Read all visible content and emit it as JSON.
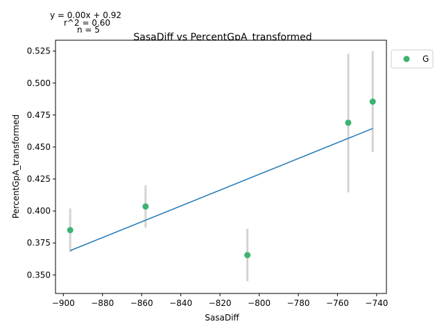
{
  "chart_data": {
    "type": "scatter",
    "title": "SasaDiff vs PercentGpA_transformed",
    "xlabel": "SasaDiff",
    "ylabel": "PercentGpA_transformed",
    "xlim": [
      -904,
      -735
    ],
    "ylim": [
      0.3355,
      0.5335
    ],
    "xticks": [
      -900,
      -880,
      -860,
      -840,
      -820,
      -800,
      -780,
      -760,
      -740
    ],
    "yticks": [
      0.35,
      0.375,
      0.4,
      0.425,
      0.45,
      0.475,
      0.5,
      0.525
    ],
    "xtick_labels": [
      "−900",
      "−880",
      "−860",
      "−840",
      "−820",
      "−800",
      "−780",
      "−760",
      "−740"
    ],
    "ytick_labels": [
      "0.350",
      "0.375",
      "0.400",
      "0.425",
      "0.450",
      "0.475",
      "0.500",
      "0.525"
    ],
    "series": [
      {
        "name": "G",
        "color": "#3cb371",
        "points": [
          {
            "x": -896.5,
            "y": 0.385,
            "err_low": 0.368,
            "err_high": 0.402
          },
          {
            "x": -858.0,
            "y": 0.4035,
            "err_low": 0.387,
            "err_high": 0.42
          },
          {
            "x": -806.0,
            "y": 0.3655,
            "err_low": 0.345,
            "err_high": 0.386
          },
          {
            "x": -754.5,
            "y": 0.469,
            "err_low": 0.4145,
            "err_high": 0.523
          },
          {
            "x": -742.0,
            "y": 0.4855,
            "err_low": 0.446,
            "err_high": 0.525
          }
        ]
      }
    ],
    "fit_line": {
      "color": "#1f77b4",
      "x": [
        -896.5,
        -742.0
      ],
      "y": [
        0.369,
        0.4645
      ]
    },
    "errorbar_color": "#d3d3d3",
    "annotations": [
      "y = 0.00x + 0.92",
      "r^2 = 0.60",
      "n = 5"
    ],
    "legend": {
      "placement": "outside-top-right",
      "entries": [
        "G"
      ]
    },
    "grid": false
  }
}
